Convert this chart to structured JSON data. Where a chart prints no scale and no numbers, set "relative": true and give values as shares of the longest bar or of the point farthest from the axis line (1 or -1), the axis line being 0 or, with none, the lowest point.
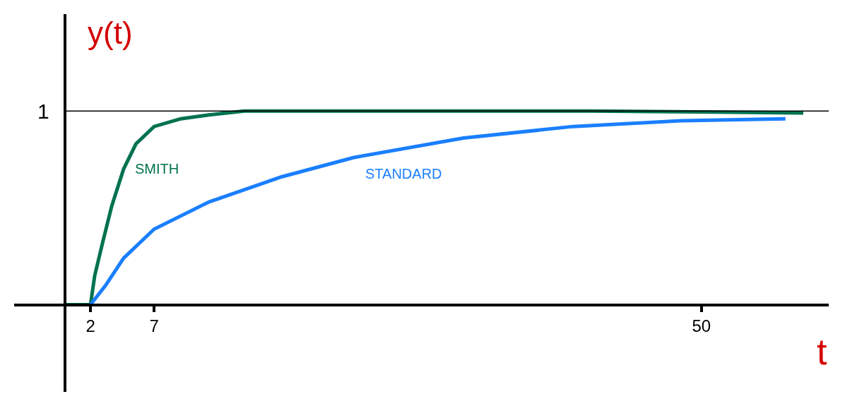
{
  "chart_data": {
    "type": "line",
    "relative": true,
    "xlabel": "t",
    "ylabel": "y(t)",
    "xlim": [
      -4,
      60
    ],
    "xticks": [
      2,
      7,
      50
    ],
    "series": [
      {
        "name": "SMITH",
        "color": "#007250",
        "x": [
          0,
          2,
          2.33,
          2.95,
          3.67,
          4.6,
          5.57,
          7,
          9.1,
          11.3,
          14.1,
          27,
          41.3,
          58
        ],
        "values": [
          0,
          0,
          0.15,
          0.32,
          0.51,
          0.7,
          0.83,
          0.92,
          0.96,
          0.98,
          1,
          1,
          1,
          0.99
        ]
      },
      {
        "name": "STANDARD",
        "color": "#1a7fff",
        "x": [
          2,
          3.19,
          4.6,
          7,
          11.3,
          17,
          22.7,
          31.3,
          39.9,
          48.4,
          56.6
        ],
        "values": [
          0,
          0.1,
          0.24,
          0.39,
          0.53,
          0.66,
          0.76,
          0.86,
          0.92,
          0.95,
          0.96
        ]
      }
    ],
    "ref_lines": [
      {
        "axis": "y",
        "value": 1,
        "label": "1",
        "color": "#000000"
      }
    ],
    "legend": false,
    "marker": "none",
    "line_style": "solid"
  }
}
